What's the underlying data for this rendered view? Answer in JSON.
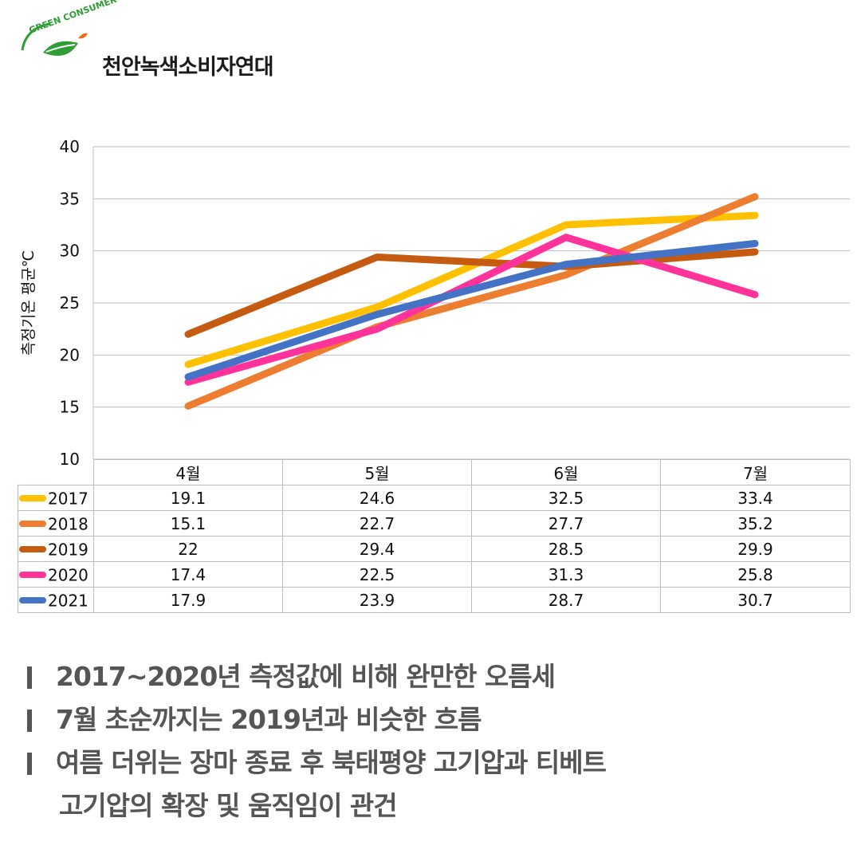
{
  "header": {
    "org_name": "천안녹색소비자연대",
    "logo_arc_text": "GREEN CONSUMER"
  },
  "colors": {
    "2017": "#ffc000",
    "2018": "#ed7d31",
    "2019": "#c55a11",
    "2020": "#ff3399",
    "2021": "#4472c4",
    "leaf_green": "#2e9e35",
    "leaf_orange": "#e8701a",
    "note_text": "#555555"
  },
  "chart_data": {
    "type": "line",
    "title": "",
    "xlabel": "",
    "ylabel": "측정기온 평균℃",
    "categories": [
      "4월",
      "5월",
      "6월",
      "7월"
    ],
    "ylim": [
      10,
      40
    ],
    "yticks": [
      10,
      15,
      20,
      25,
      30,
      35,
      40
    ],
    "series": [
      {
        "name": "2017",
        "values": [
          19.1,
          24.6,
          32.5,
          33.4
        ]
      },
      {
        "name": "2018",
        "values": [
          15.1,
          22.7,
          27.7,
          35.2
        ]
      },
      {
        "name": "2019",
        "values": [
          22,
          29.4,
          28.5,
          29.9
        ]
      },
      {
        "name": "2020",
        "values": [
          17.4,
          22.5,
          31.3,
          25.8
        ]
      },
      {
        "name": "2021",
        "values": [
          17.9,
          23.9,
          28.7,
          30.7
        ]
      }
    ],
    "value_labels": [
      [
        "19.1",
        "24.6",
        "32.5",
        "33.4"
      ],
      [
        "15.1",
        "22.7",
        "27.7",
        "35.2"
      ],
      [
        "22",
        "29.4",
        "28.5",
        "29.9"
      ],
      [
        "17.4",
        "22.5",
        "31.3",
        "25.8"
      ],
      [
        "17.9",
        "23.9",
        "28.7",
        "30.7"
      ]
    ],
    "grid": true,
    "legend": "data-table-below"
  },
  "notes": [
    "2017~2020년 측정값에 비해 완만한 오름세",
    "7월 초순까지는 2019년과 비슷한 흐름",
    "여름 더위는 장마 종료 후 북태평양 고기압과 티베트",
    "고기압의 확장 및 움직임이 관건"
  ]
}
